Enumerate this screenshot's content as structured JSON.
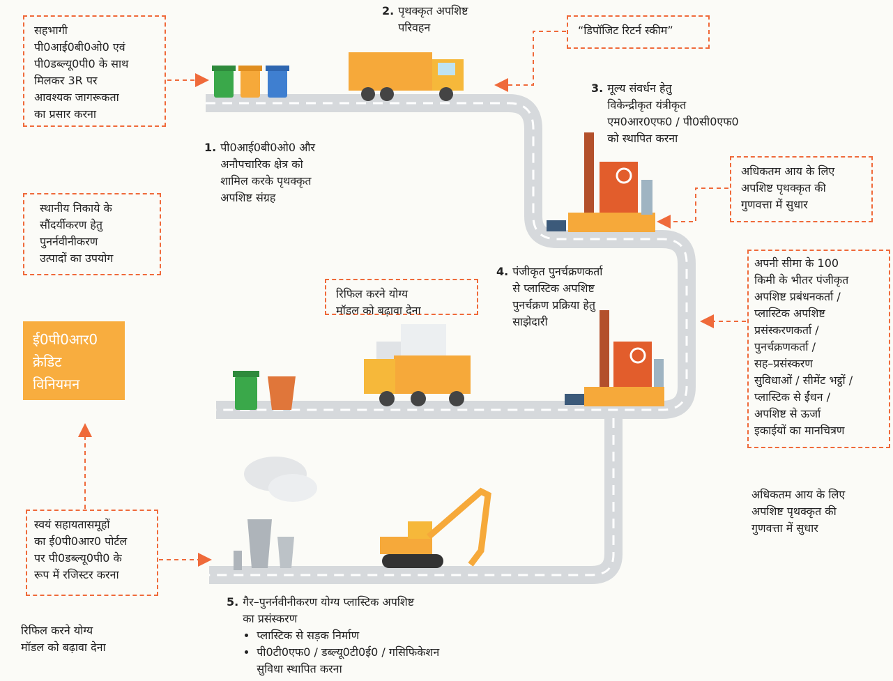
{
  "steps": [
    {
      "number": "1.",
      "lines": [
        "पी0आई0बी0ओ0 और",
        "अनौपचारिक क्षेत्र को",
        "शामिल करके पृथक्कृत",
        "अपशिष्ट संग्रह"
      ]
    },
    {
      "number": "2.",
      "lines": [
        "पृथक्कृत अपशिष्ट",
        "परिवहन"
      ]
    },
    {
      "number": "3.",
      "lines": [
        "मूल्य संवर्धन हेतु",
        "विकेन्द्रीकृत यंत्रीकृत",
        "एम0आर0एफ0 / पी0सी0एफ0",
        "को स्थापित करना"
      ]
    },
    {
      "number": "4.",
      "lines": [
        "पंजीकृत पुनर्चक्रणकर्ता",
        "से प्लास्टिक अपशिष्ट",
        "पुनर्चक्रण प्रक्रिया हेतु",
        "साझेदारी"
      ]
    },
    {
      "number": "5.",
      "lines": [
        "गैर–पुनर्नवीनीकरण योग्य प्लास्टिक अपशिष्ट",
        "का प्रसंस्करण"
      ],
      "bullets": [
        {
          "lines": [
            "प्लास्टिक से सड़क निर्माण"
          ]
        },
        {
          "lines": [
            "पी0टी0एफ0 / डब्ल्यू0टी0ई0 / गसिफिकेशन",
            "सुविधा स्थापित करना"
          ]
        }
      ]
    }
  ],
  "callouts": [
    {
      "lines": [
        "सहभागी",
        "पी0आई0बी0ओ0 एवं",
        "पी0डब्ल्यू0पी0 के साथ",
        "मिलकर 3R पर",
        "आवश्यक जागरूकता",
        "का प्रसार करना"
      ]
    },
    {
      "lines": [
        "“डिपॉजिट रिटर्न स्कीम”"
      ]
    },
    {
      "lines": [
        "अधिकतम आय के लिए",
        "अपशिष्ट पृथक्कृत की",
        "गुणवत्ता में सुधार"
      ]
    },
    {
      "lines": [
        "स्थानीय निकाये के",
        "सौंदर्यीकरण हेतु",
        "पुनर्नवीनीकरण",
        "उत्पादों का उपयोग"
      ]
    },
    {
      "lines": [
        "रिफिल करने योग्य",
        "मॉडल को बढ़ावा देना"
      ]
    },
    {
      "lines": [
        "अपनी सीमा के 100",
        "किमी के भीतर पंजीकृत",
        "अपशिष्ट प्रबंधनकर्ता /",
        "प्लास्टिक अपशिष्ट",
        "प्रसंस्करणकर्ता /",
        "पुनर्चक्रणकर्ता /",
        "सह–प्रसंस्करण",
        "सुविधाओं / सीमेंट भट्ठों /",
        "प्लास्टिक से ईंधन /",
        "अपशिष्ट से ऊर्जा",
        "इकाईयों का मानचित्रण"
      ]
    },
    {
      "lines": [
        "स्वयं सहायतासमूहों",
        "का ई0पी0आर0 पोर्टल",
        "पर पी0डब्ल्यू0पी0 के",
        "रूप में रजिस्टर करना"
      ]
    }
  ],
  "credit": {
    "lines": [
      "ई0पी0आर0",
      "क्रेडिट",
      "विनियमन"
    ]
  },
  "notes": [
    {
      "lines": [
        "रिफिल करने योग्य",
        "मॉडल को बढ़ावा देना"
      ]
    },
    {
      "lines": [
        "अधिकतम आय के लिए",
        "अपशिष्ट पृथक्कृत की",
        "गुणवत्ता में सुधार"
      ]
    }
  ]
}
